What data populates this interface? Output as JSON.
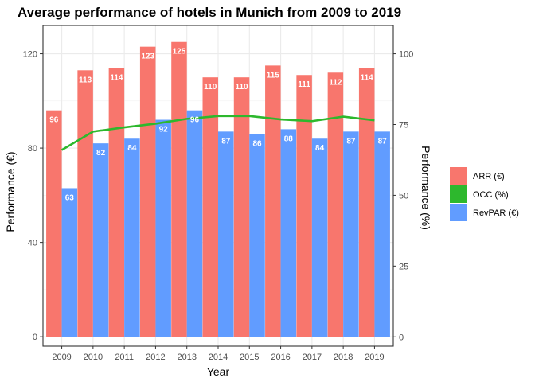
{
  "chart_data": {
    "type": "bar",
    "title": "Average performance of hotels in Munich from 2009 to 2019",
    "xlabel": "Year",
    "ylabel": "Performance (€)",
    "y2label": "Performance (%)",
    "categories": [
      "2009",
      "2010",
      "2011",
      "2012",
      "2013",
      "2014",
      "2015",
      "2016",
      "2017",
      "2018",
      "2019"
    ],
    "ylim": [
      -4,
      132
    ],
    "y_ticks": [
      0,
      40,
      80,
      120
    ],
    "y2lim": [
      -3.3,
      110
    ],
    "y2_ticks": [
      0,
      25,
      50,
      75,
      100
    ],
    "series": [
      {
        "name": "ARR (€)",
        "kind": "bar",
        "color": "#F8766D",
        "values": [
          96,
          113,
          114,
          123,
          125,
          110,
          110,
          115,
          111,
          112,
          114
        ]
      },
      {
        "name": "RevPAR (€)",
        "kind": "bar",
        "color": "#619CFF",
        "values": [
          63,
          82,
          84,
          92,
          96,
          87,
          86,
          88,
          84,
          87,
          87
        ]
      },
      {
        "name": "OCC (%)",
        "kind": "line",
        "axis": "secondary",
        "color": "#2DB82D",
        "values": [
          66,
          72.5,
          74,
          75.3,
          77,
          78,
          78,
          76.8,
          76.2,
          77.8,
          76.5
        ]
      }
    ],
    "legend_position": "right",
    "grid": true
  }
}
